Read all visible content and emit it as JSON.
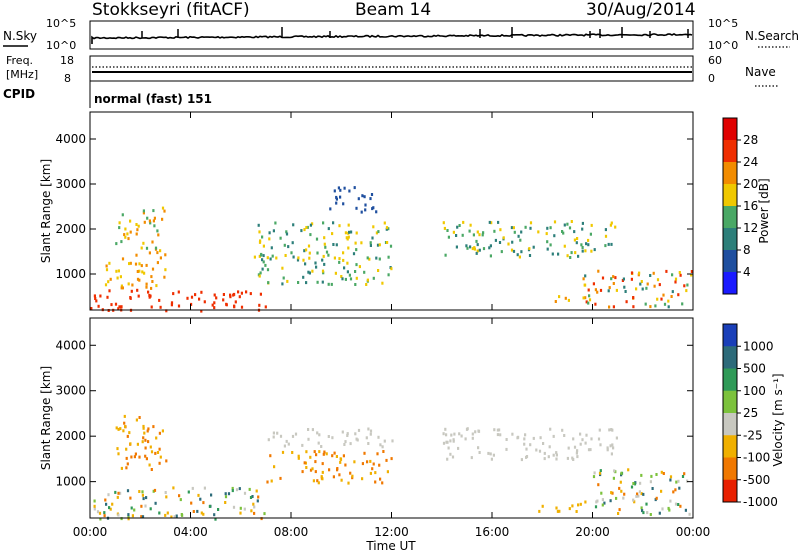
{
  "header": {
    "station": "Stokkseyri (fitACF)",
    "beam": "Beam 14",
    "date": "30/Aug/2014"
  },
  "noise_panel": {
    "label": "N.Sky",
    "left_ticks": [
      "10^5",
      "10^0"
    ],
    "right_ticks": [
      "10^5",
      "10^0"
    ],
    "right_label": "N.Search"
  },
  "freq_panel": {
    "label_line1": "Freq.",
    "label_line2": "[MHz]",
    "left_ticks": [
      "18",
      "8"
    ],
    "right_ticks": [
      "60",
      "0"
    ],
    "right_label": "Nave"
  },
  "cpid_panel": {
    "label": "CPID",
    "text": "normal (fast) 151"
  },
  "chart_data": [
    {
      "type": "heatmap",
      "panel": "power",
      "ylabel": "Slant Range [km]",
      "yticks": [
        "1000",
        "2000",
        "3000",
        "4000"
      ],
      "ylim": [
        200,
        4600
      ],
      "colorbar": {
        "label": "Power [dB]",
        "ticks": [
          "4",
          "8",
          "12",
          "16",
          "20",
          "24",
          "28"
        ],
        "colors": [
          "#1a1aff",
          "#1f4f9f",
          "#2d7f7a",
          "#4aa865",
          "#f0c800",
          "#f28c00",
          "#ef2e00",
          "#e00000"
        ]
      },
      "regions": [
        {
          "t0": 0.0,
          "t1": 7.0,
          "r0": 200,
          "r1": 700,
          "level": "24-28"
        },
        {
          "t0": 0.5,
          "t1": 3.0,
          "r0": 700,
          "r1": 1600,
          "level": "16-24"
        },
        {
          "t0": 1.0,
          "t1": 3.0,
          "r0": 1600,
          "r1": 2500,
          "level": "12-24"
        },
        {
          "t0": 6.5,
          "t1": 12.0,
          "r0": 800,
          "r1": 2200,
          "level": "8-20"
        },
        {
          "t0": 9.5,
          "t1": 11.5,
          "r0": 2400,
          "r1": 3000,
          "level": "4-8"
        },
        {
          "t0": 14.0,
          "t1": 21.0,
          "r0": 1400,
          "r1": 2200,
          "level": "8-20"
        },
        {
          "t0": 17.8,
          "t1": 20.0,
          "r0": 400,
          "r1": 550,
          "level": "16-24"
        },
        {
          "t0": 19.5,
          "t1": 24.0,
          "r0": 300,
          "r1": 1100,
          "level": "8-28"
        }
      ]
    },
    {
      "type": "heatmap",
      "panel": "velocity",
      "ylabel": "Slant Range [km]",
      "yticks": [
        "1000",
        "2000",
        "3000",
        "4000"
      ],
      "ylim": [
        200,
        4600
      ],
      "colorbar": {
        "label": "Velocity [m s⁻¹]",
        "ticks": [
          "1000",
          "500",
          "100",
          "25",
          "-25",
          "-100",
          "-500",
          "-1000"
        ],
        "colors": [
          "#1a3fb8",
          "#2d6b7a",
          "#2f9a57",
          "#7cc23c",
          "#c8c8c0",
          "#f0b000",
          "#f07800",
          "#e82000"
        ]
      },
      "regions": [
        {
          "t0": 0.0,
          "t1": 7.0,
          "r0": 200,
          "r1": 900,
          "level": "mixed"
        },
        {
          "t0": 1.0,
          "t1": 3.0,
          "r0": 1200,
          "r1": 2500,
          "level": "-100 to -500"
        },
        {
          "t0": 7.0,
          "t1": 12.0,
          "r0": 1000,
          "r1": 1700,
          "level": "-100 to -500"
        },
        {
          "t0": 7.0,
          "t1": 12.0,
          "r0": 1800,
          "r1": 2200,
          "level": "-25 to 25"
        },
        {
          "t0": 14.0,
          "t1": 21.0,
          "r0": 1500,
          "r1": 2200,
          "level": "-25 to 25"
        },
        {
          "t0": 17.8,
          "t1": 20.0,
          "r0": 350,
          "r1": 600,
          "level": "-100"
        },
        {
          "t0": 20.0,
          "t1": 24.0,
          "r0": 300,
          "r1": 1300,
          "level": "mixed"
        }
      ]
    }
  ],
  "xaxis": {
    "ticks": [
      "00:00",
      "04:00",
      "08:00",
      "12:00",
      "16:00",
      "20:00",
      "00:00"
    ],
    "label": "Time UT",
    "range_hours": [
      0,
      24
    ]
  }
}
